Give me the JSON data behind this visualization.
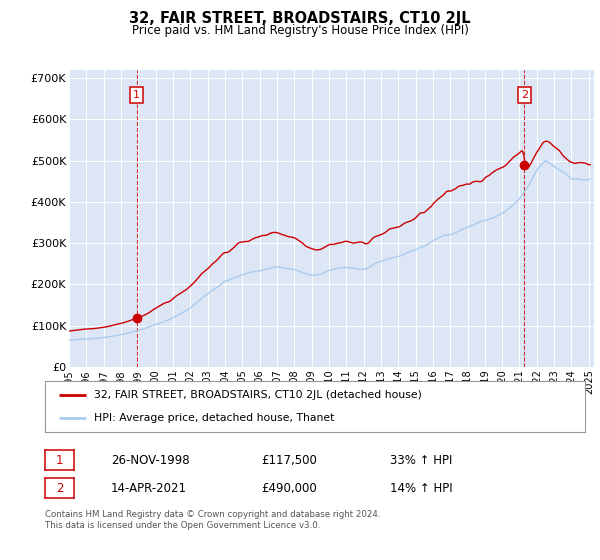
{
  "title": "32, FAIR STREET, BROADSTAIRS, CT10 2JL",
  "subtitle": "Price paid vs. HM Land Registry's House Price Index (HPI)",
  "ylim": [
    0,
    720000
  ],
  "yticks": [
    0,
    100000,
    200000,
    300000,
    400000,
    500000,
    600000,
    700000
  ],
  "ytick_labels": [
    "£0",
    "£100K",
    "£200K",
    "£300K",
    "£400K",
    "£500K",
    "£600K",
    "£700K"
  ],
  "bg_color": "#dce6f5",
  "hpi_color": "#aaccee",
  "price_color": "#cc0000",
  "marker_color": "#cc0000",
  "annotation_box_color": "#cc0000",
  "sale1_date": 1998.9,
  "sale1_price": 117500,
  "sale1_label": "1",
  "sale2_date": 2021.28,
  "sale2_price": 490000,
  "sale2_label": "2",
  "legend_line1": "32, FAIR STREET, BROADSTAIRS, CT10 2JL (detached house)",
  "legend_line2": "HPI: Average price, detached house, Thanet",
  "footnote": "Contains HM Land Registry data © Crown copyright and database right 2024.\nThis data is licensed under the Open Government Licence v3.0.",
  "table_row1_label": "1",
  "table_row1_date": "26-NOV-1998",
  "table_row1_price": "£117,500",
  "table_row1_hpi": "33% ↑ HPI",
  "table_row2_label": "2",
  "table_row2_date": "14-APR-2021",
  "table_row2_price": "£490,000",
  "table_row2_hpi": "14% ↑ HPI"
}
